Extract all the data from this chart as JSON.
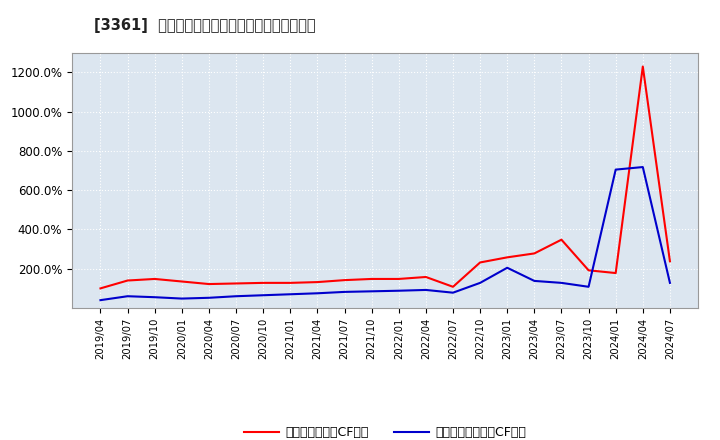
{
  "title": "[3361]  有利子負債キャッシュフロー比率の推移",
  "background_color": "#ffffff",
  "plot_bg_color": "#dce6f0",
  "grid_color": "#ffffff",
  "legend_label_red": "有利子負債営業CF比率",
  "legend_label_blue": "有利子負債フリーCF比率",
  "line_color_red": "#ff0000",
  "line_color_blue": "#0000cc",
  "x_labels": [
    "2019/04",
    "2019/07",
    "2019/10",
    "2020/01",
    "2020/04",
    "2020/07",
    "2020/10",
    "2021/01",
    "2021/04",
    "2021/07",
    "2021/10",
    "2022/01",
    "2022/04",
    "2022/07",
    "2022/10",
    "2023/01",
    "2023/04",
    "2023/07",
    "2023/10",
    "2024/01",
    "2024/04",
    "2024/07"
  ],
  "red_values": [
    100,
    140,
    148,
    135,
    122,
    125,
    128,
    128,
    132,
    142,
    148,
    148,
    158,
    108,
    232,
    258,
    278,
    348,
    192,
    178,
    1230,
    238
  ],
  "blue_values": [
    40,
    60,
    55,
    48,
    52,
    60,
    65,
    70,
    75,
    82,
    85,
    88,
    92,
    78,
    128,
    205,
    138,
    128,
    108,
    705,
    718,
    128
  ],
  "ylim": [
    0,
    1300
  ],
  "yticks": [
    200,
    400,
    600,
    800,
    1000,
    1200
  ]
}
